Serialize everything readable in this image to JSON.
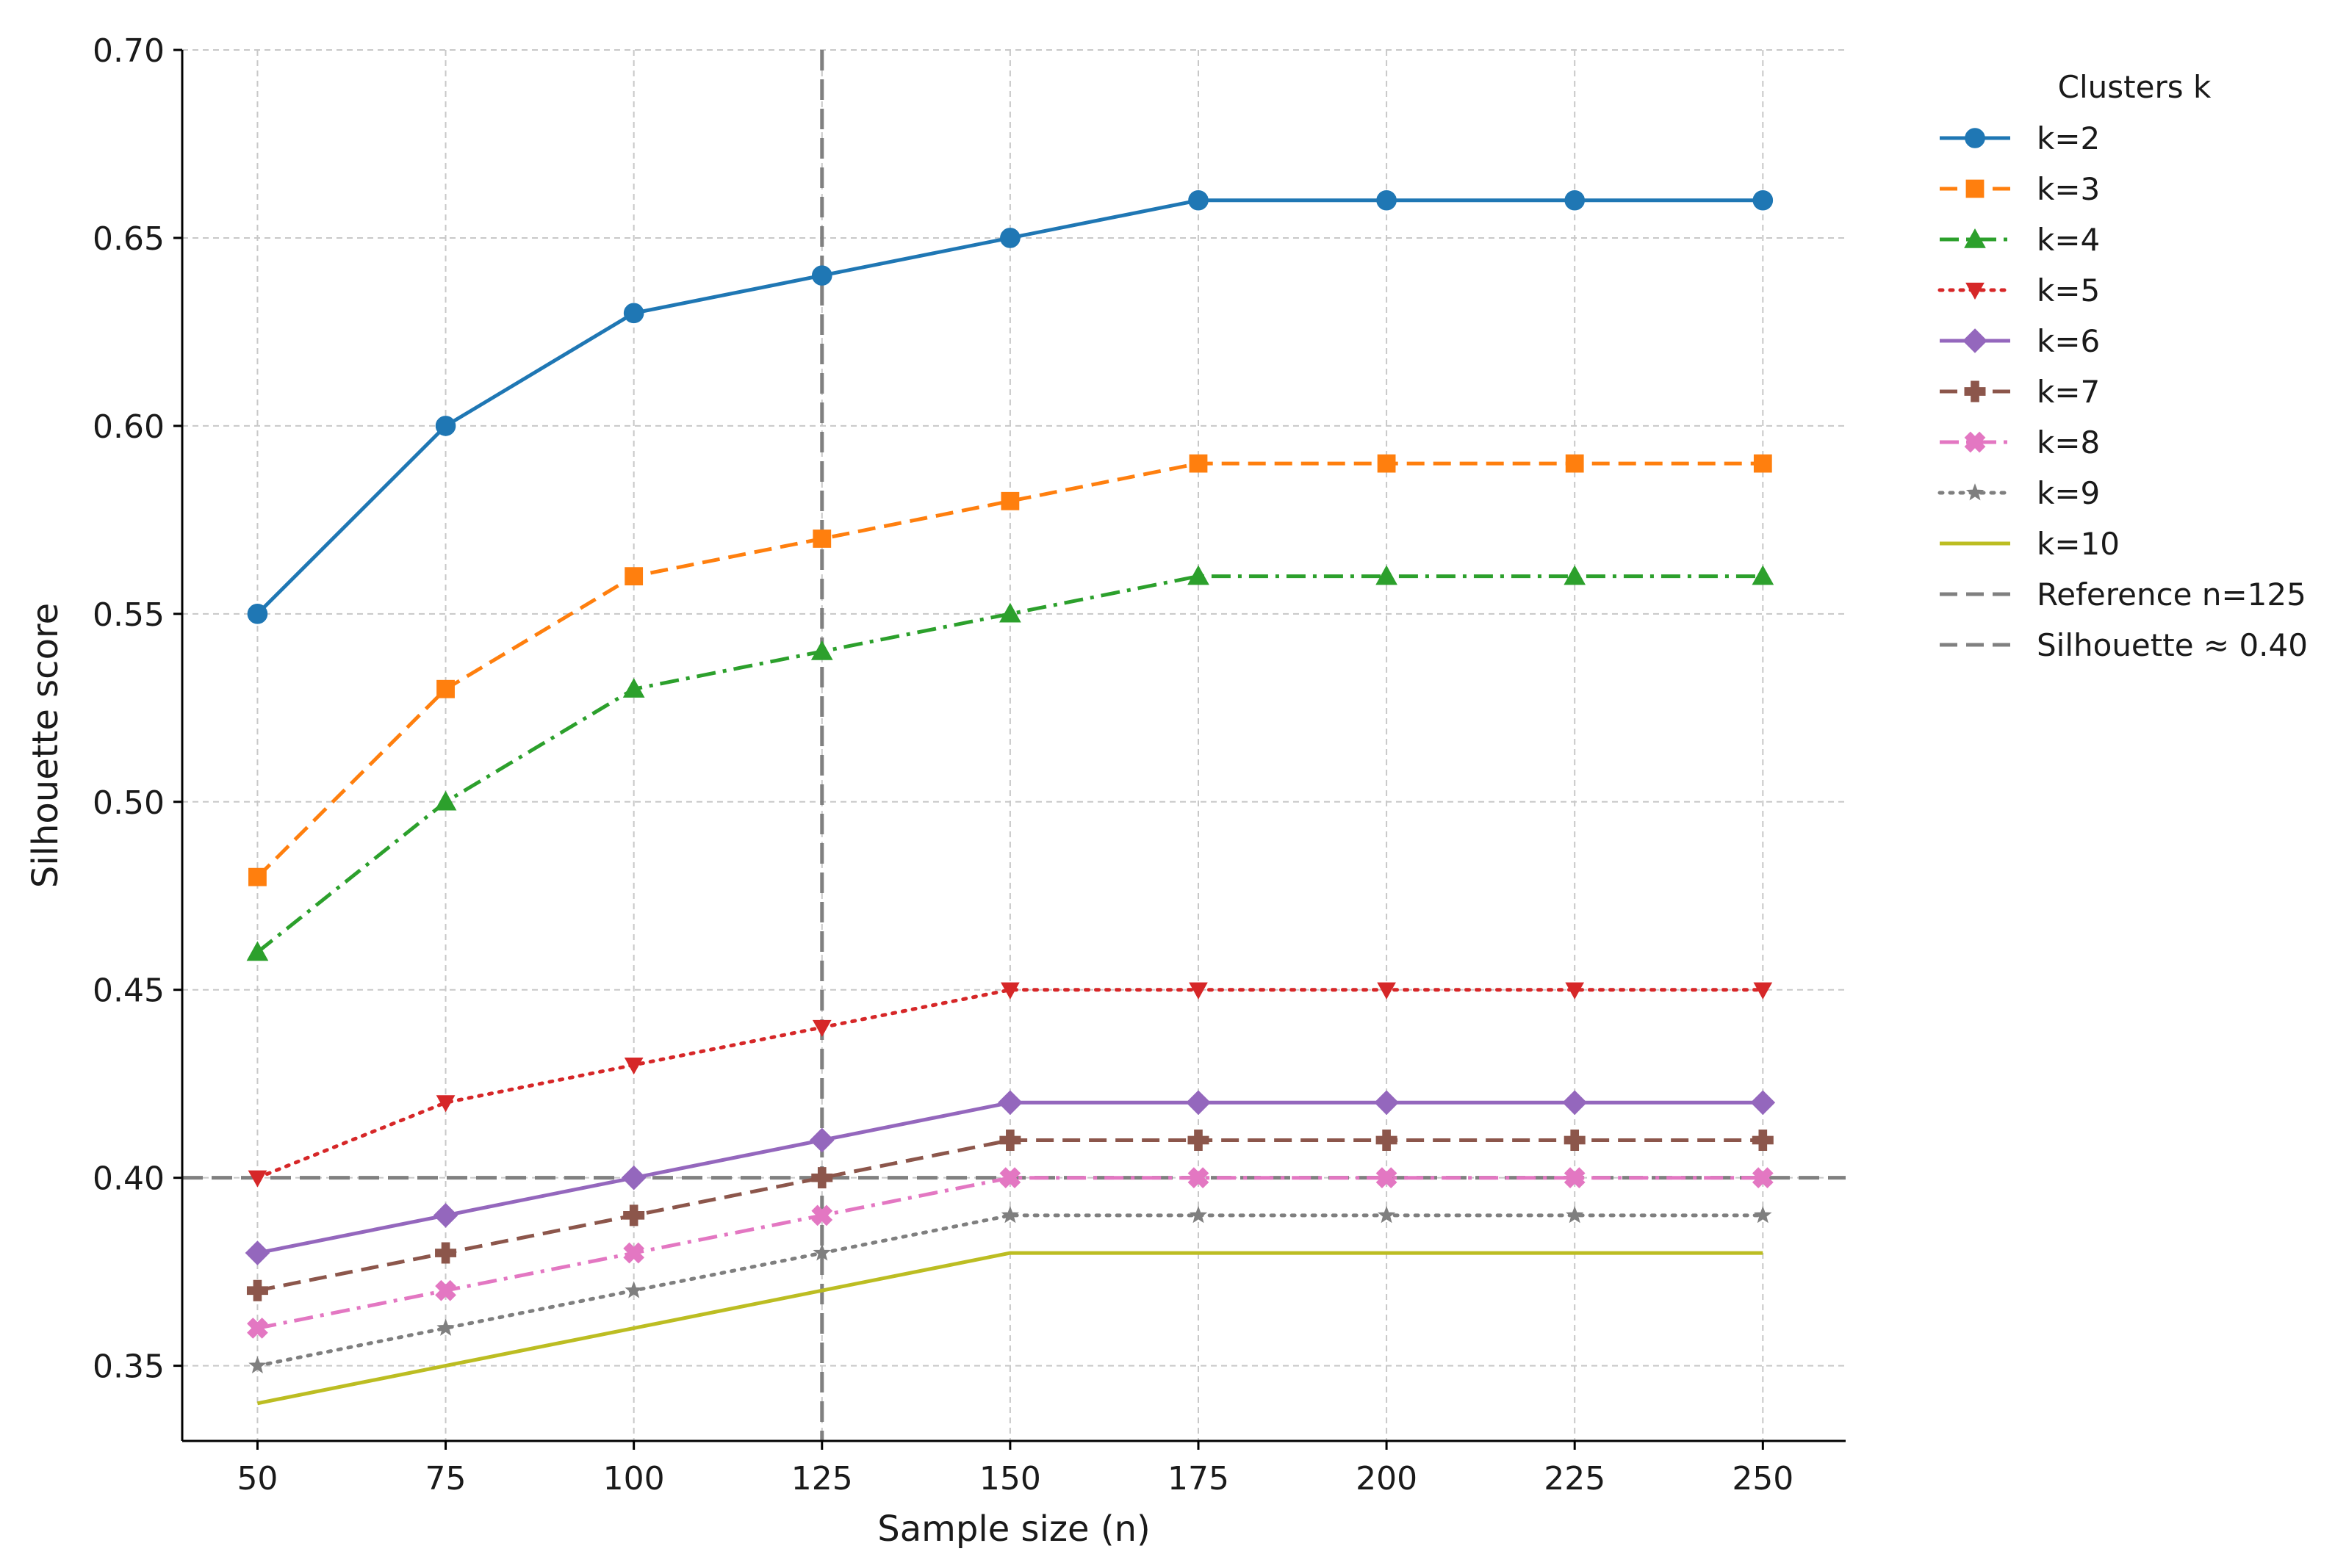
{
  "chart_data": {
    "type": "line",
    "title": "",
    "xlabel": "Sample size (n)",
    "ylabel": "Silhouette score",
    "x": [
      50,
      75,
      100,
      125,
      150,
      175,
      200,
      225,
      250
    ],
    "xlim": [
      40,
      261
    ],
    "ylim": [
      0.33,
      0.7
    ],
    "xticks": [
      50,
      75,
      100,
      125,
      150,
      175,
      200,
      225,
      250
    ],
    "yticks": [
      0.35,
      0.4,
      0.45,
      0.5,
      0.55,
      0.6,
      0.65,
      0.7
    ],
    "ytick_labels": [
      "0.35",
      "0.40",
      "0.45",
      "0.50",
      "0.55",
      "0.60",
      "0.65",
      "0.70"
    ],
    "grid": true,
    "legend": {
      "title": "Clusters k",
      "placement": "outside-right"
    },
    "series": [
      {
        "name": "k=2",
        "color": "#1f77b4",
        "linestyle": "solid",
        "marker": "circle",
        "values": [
          0.55,
          0.6,
          0.63,
          0.64,
          0.65,
          0.66,
          0.66,
          0.66,
          0.66
        ]
      },
      {
        "name": "k=3",
        "color": "#ff7f0e",
        "linestyle": "dashed",
        "marker": "square",
        "values": [
          0.48,
          0.53,
          0.56,
          0.57,
          0.58,
          0.59,
          0.59,
          0.59,
          0.59
        ]
      },
      {
        "name": "k=4",
        "color": "#2ca02c",
        "linestyle": "dashdot",
        "marker": "triangle-up",
        "values": [
          0.46,
          0.5,
          0.53,
          0.54,
          0.55,
          0.56,
          0.56,
          0.56,
          0.56
        ]
      },
      {
        "name": "k=5",
        "color": "#d62728",
        "linestyle": "dotted",
        "marker": "triangle-down",
        "values": [
          0.4,
          0.42,
          0.43,
          0.44,
          0.45,
          0.45,
          0.45,
          0.45,
          0.45
        ]
      },
      {
        "name": "k=6",
        "color": "#9467bd",
        "linestyle": "solid",
        "marker": "diamond",
        "values": [
          0.38,
          0.39,
          0.4,
          0.41,
          0.42,
          0.42,
          0.42,
          0.42,
          0.42
        ]
      },
      {
        "name": "k=7",
        "color": "#8c564b",
        "linestyle": "dashed",
        "marker": "plus",
        "values": [
          0.37,
          0.38,
          0.39,
          0.4,
          0.41,
          0.41,
          0.41,
          0.41,
          0.41
        ]
      },
      {
        "name": "k=8",
        "color": "#e377c2",
        "linestyle": "dashdot",
        "marker": "x",
        "values": [
          0.36,
          0.37,
          0.38,
          0.39,
          0.4,
          0.4,
          0.4,
          0.4,
          0.4
        ]
      },
      {
        "name": "k=9",
        "color": "#7f7f7f",
        "linestyle": "dotted",
        "marker": "star",
        "values": [
          0.35,
          0.36,
          0.37,
          0.38,
          0.39,
          0.39,
          0.39,
          0.39,
          0.39
        ]
      },
      {
        "name": "k=10",
        "color": "#bcbd22",
        "linestyle": "solid",
        "marker": "none",
        "values": [
          0.34,
          0.35,
          0.36,
          0.37,
          0.38,
          0.38,
          0.38,
          0.38,
          0.38
        ]
      }
    ],
    "reference_lines": [
      {
        "name": "Reference n=125",
        "orientation": "vertical",
        "value": 125,
        "color": "#808080",
        "linestyle": "dashed"
      },
      {
        "name": "Silhouette ≈ 0.40",
        "orientation": "horizontal",
        "value": 0.4,
        "color": "#808080",
        "linestyle": "dashed"
      }
    ]
  }
}
